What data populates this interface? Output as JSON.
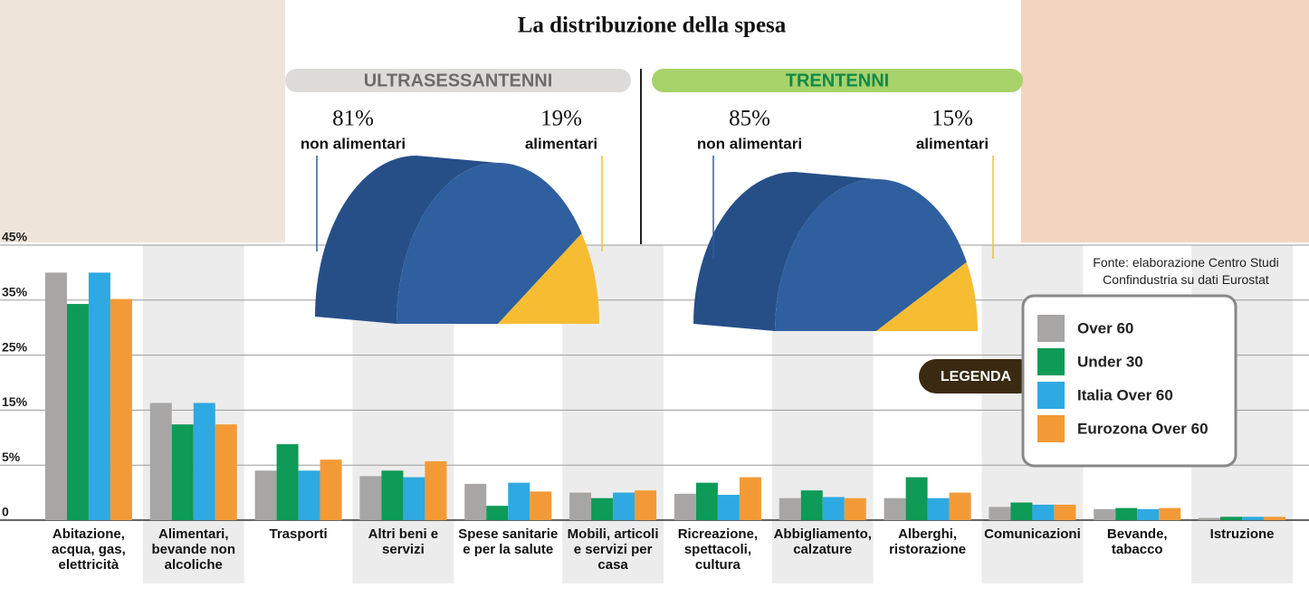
{
  "chart_data": [
    {
      "type": "bar",
      "title": "La distribuzione della spesa",
      "source": "Fonte: elaborazione Centro Studi Confindustria su dati Eurostat",
      "legend_title": "LEGENDA",
      "categories": [
        "Abitazione, acqua, gas, elettricità",
        "Alimentari, bevande non alcoliche",
        "Trasporti",
        "Altri beni e servizi",
        "Spese sanitarie e per la salute",
        "Mobili, articoli e servizi per casa",
        "Ricreazione, spettacoli, cultura",
        "Abbigliamento, calzature",
        "Alberghi, ristorazione",
        "Comunicazioni",
        "Bevande, tabacco",
        "Istruzione"
      ],
      "series": [
        {
          "name": "Over 60",
          "color": "#a8a6a4",
          "values": [
            40,
            16.3,
            4.5,
            4.0,
            3.3,
            2.5,
            2.4,
            2.0,
            2.0,
            1.2,
            1.0,
            0.2
          ]
        },
        {
          "name": "Under 30",
          "color": "#0e9a57",
          "values": [
            34.3,
            12.4,
            8.8,
            4.5,
            1.3,
            2.0,
            3.4,
            2.7,
            3.9,
            1.6,
            1.1,
            0.3
          ]
        },
        {
          "name": "Italia Over 60",
          "color": "#2ea9e1",
          "values": [
            40,
            16.3,
            4.5,
            3.9,
            3.4,
            2.5,
            2.3,
            2.1,
            2.0,
            1.4,
            1.0,
            0.3
          ]
        },
        {
          "name": "Eurozona Over 60",
          "color": "#f39a36",
          "values": [
            35.2,
            12.4,
            6.0,
            5.7,
            2.6,
            2.7,
            3.9,
            2.0,
            2.5,
            1.4,
            1.1,
            0.3
          ]
        }
      ],
      "ylim": [
        0,
        45
      ],
      "yticks": [
        {
          "value": 0,
          "label": "0"
        },
        {
          "value": 5,
          "label": "5%"
        },
        {
          "value": 15,
          "label": "15%"
        },
        {
          "value": 25,
          "label": "25%"
        },
        {
          "value": 35,
          "label": "35%"
        },
        {
          "value": 45,
          "label": "45%"
        }
      ],
      "grid": true,
      "legend": "right"
    },
    {
      "type": "pie",
      "title": "ULTRASESSANTENNI",
      "categories": [
        "non alimentari",
        "alimentari"
      ],
      "values": [
        81,
        19
      ],
      "value_labels": [
        "81%",
        "19%"
      ],
      "colors": [
        "#2f5f9f",
        "#f6bd33"
      ],
      "banner_color": "#dddbd9",
      "title_color": "#6e6c6a"
    },
    {
      "type": "pie",
      "title": "TRENTENNI",
      "categories": [
        "non alimentari",
        "alimentari"
      ],
      "values": [
        85,
        15
      ],
      "value_labels": [
        "85%",
        "15%"
      ],
      "colors": [
        "#2f5f9f",
        "#f6bd33"
      ],
      "banner_color": "#a8d26a",
      "title_color": "#0e8a4a"
    }
  ]
}
